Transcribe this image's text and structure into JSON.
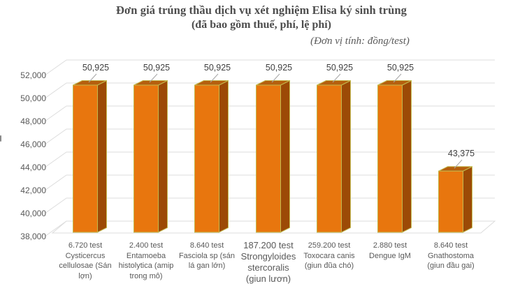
{
  "title": {
    "line1": "Đơn giá trúng thầu dịch vụ xét nghiệm Elisa ký sinh trùng",
    "line2": "(đã bao gồm thuế, phí, lệ phí)",
    "unit_note": "(Đơn vị tính: đồng/test)"
  },
  "colors": {
    "bar_front": "#E8760E",
    "bar_top": "#B55F0E",
    "bar_side": "#9C4A06",
    "bar_edge": "#C2B94E",
    "gridline": "#DCDCDC",
    "leader_line": "#A6A6A6",
    "title_text": "#4D4D4D",
    "axis_text": "#595959",
    "data_label_text": "#404040",
    "background": "#FFFFFF"
  },
  "chart_data": {
    "type": "bar",
    "style": "3d-column",
    "title": "Đơn giá trúng thầu dịch vụ xét nghiệm Elisa ký sinh trùng (đã bao gồm thuế, phí, lệ phí)",
    "unit": "đồng/test",
    "categories": [
      "6.720 test\nCysticercus\ncellulosae (Sán\nlợn)",
      "2.400 test\nEntamoeba\nhistolytica (amip\ntrong mô)",
      "8.640 test\nFasciola sp (sán\nlá gan lớn)",
      "187.200 test\nStrongyloides\nstercoralis\n(giun lươn)",
      "259.200 test\nToxocara canis\n(giun đũa chó)",
      "2.880 test\nDengue IgM",
      "8.640 test\nGnathostoma\n(giun đầu gai)"
    ],
    "emphasized_category_index": 3,
    "values": [
      50925,
      50925,
      50925,
      50925,
      50925,
      50925,
      43375
    ],
    "data_labels": [
      "50,925",
      "50,925",
      "50,925",
      "50,925",
      "50,925",
      "50,925",
      "43,375"
    ],
    "ylabel": "",
    "xlabel": "",
    "ylim": [
      38000,
      52000
    ],
    "ytick_step": 2000,
    "ytick_labels": [
      "52,000",
      "50,000",
      "48,000",
      "46,000",
      "44,000",
      "42,000",
      "40,000",
      "38,000"
    ],
    "ytick_values": [
      52000,
      50000,
      48000,
      46000,
      44000,
      42000,
      40000,
      38000
    ],
    "grid": true,
    "legend": false
  }
}
